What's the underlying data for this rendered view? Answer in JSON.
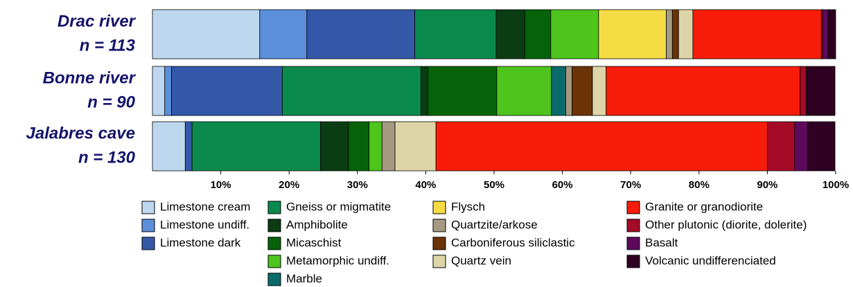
{
  "chart_data": {
    "type": "stacked-bar-horizontal",
    "categories": [
      "Drac river",
      "Bonne river",
      "Jalabres cave"
    ],
    "category_notes": [
      "n = 113",
      "n = 90",
      "n = 130"
    ],
    "xlim": [
      0,
      100
    ],
    "xticks": [
      {
        "value": 10,
        "label": "10%"
      },
      {
        "value": 20,
        "label": "20%"
      },
      {
        "value": 30,
        "label": "30%"
      },
      {
        "value": 40,
        "label": "40%"
      },
      {
        "value": 50,
        "label": "50%"
      },
      {
        "value": 60,
        "label": "60%"
      },
      {
        "value": 70,
        "label": "70%"
      },
      {
        "value": 80,
        "label": "80%"
      },
      {
        "value": 90,
        "label": "90%"
      },
      {
        "value": 100,
        "label": "100%"
      }
    ],
    "series": [
      {
        "name": "Limestone cream",
        "color": "#bdd7ee",
        "values": [
          15.7,
          1.8,
          4.8
        ]
      },
      {
        "name": "Limestone undiff.",
        "color": "#5b8fd9",
        "values": [
          6.9,
          1.0,
          0
        ]
      },
      {
        "name": "Limestone dark",
        "color": "#3458a8",
        "values": [
          15.8,
          16.2,
          1.0
        ]
      },
      {
        "name": "Gneiss or migmatite",
        "color": "#0b8a4e",
        "values": [
          11.9,
          20.3,
          18.8
        ]
      },
      {
        "name": "Amphibolite",
        "color": "#0a3d12",
        "values": [
          4.2,
          1.0,
          4.1
        ]
      },
      {
        "name": "Micaschist",
        "color": "#066309",
        "values": [
          3.8,
          10.1,
          3.0
        ]
      },
      {
        "name": "Metamorphic undiff.",
        "color": "#4ec41d",
        "values": [
          7.0,
          8.0,
          1.9
        ]
      },
      {
        "name": "Marble",
        "color": "#0a6b6b",
        "values": [
          0,
          2.1,
          0
        ]
      },
      {
        "name": "Flysch",
        "color": "#f5dc45",
        "values": [
          9.9,
          0,
          0
        ]
      },
      {
        "name": "Quartzite/arkose",
        "color": "#a39a80",
        "values": [
          0.9,
          0.9,
          1.9
        ]
      },
      {
        "name": "Carboniferous siliclastic",
        "color": "#6b3306",
        "values": [
          0.9,
          3.0,
          0
        ]
      },
      {
        "name": "Quartz vein",
        "color": "#ddd5a8",
        "values": [
          2.1,
          2.0,
          6.0
        ]
      },
      {
        "name": "Granite or granodiorite",
        "color": "#f71d0a",
        "values": [
          18.8,
          28.4,
          48.5
        ]
      },
      {
        "name": "Other plutonic (diorite, dolerite)",
        "color": "#a50a26",
        "values": [
          0.2,
          0.9,
          4.0
        ]
      },
      {
        "name": "Basalt",
        "color": "#5e0a5c",
        "values": [
          0.8,
          0,
          1.9
        ]
      },
      {
        "name": "Volcanic undifferenciated",
        "color": "#2e0022",
        "values": [
          1.1,
          4.2,
          4.0
        ]
      }
    ]
  }
}
